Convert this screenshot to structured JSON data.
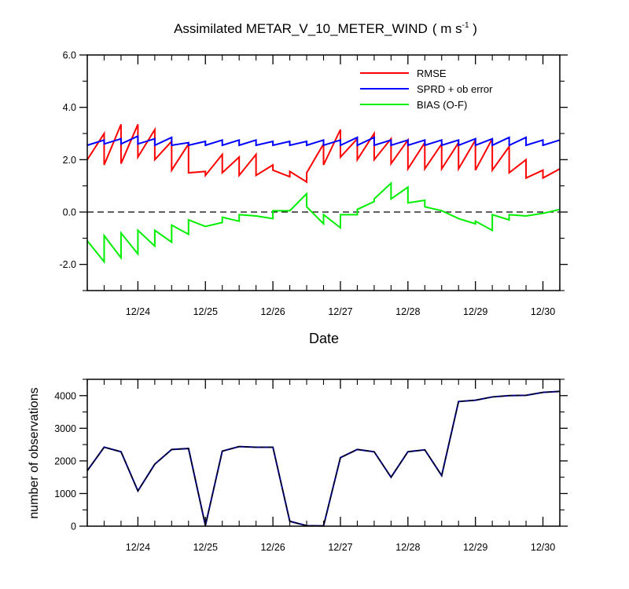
{
  "chart_data": [
    {
      "type": "line",
      "title": "Assimilated METAR_V_10_METER_WIND",
      "title_units": "( m s",
      "title_units_exp": "-1",
      "title_units_end": " )",
      "xlabel": "Date",
      "ylabel": "",
      "xlim": [
        0,
        7
      ],
      "ylim": [
        -3,
        6
      ],
      "x_tick_positions": [
        0.75,
        1.75,
        2.75,
        3.75,
        4.75,
        5.75,
        6.75
      ],
      "x_tick_labels": [
        "12/24",
        "12/25",
        "12/26",
        "12/27",
        "12/28",
        "12/29",
        "12/30"
      ],
      "y_ticks": [
        6,
        4,
        2,
        0,
        -2
      ],
      "y_tick_labels": [
        "6.0",
        "4.0",
        "2.0",
        "0.0",
        "-2.0"
      ],
      "zero_line": true,
      "legend_position": "top-right",
      "series": [
        {
          "name": "RMSE",
          "color": "#ff0000",
          "x": [
            0,
            0.25,
            0.25,
            0.5,
            0.5,
            0.75,
            0.75,
            1.0,
            1.0,
            1.25,
            1.25,
            1.5,
            1.5,
            1.75,
            1.75,
            2.0,
            2.0,
            2.25,
            2.25,
            2.5,
            2.5,
            2.75,
            2.75,
            3.0,
            3.0,
            3.25,
            3.25,
            3.5,
            3.5,
            3.75,
            3.75,
            4.0,
            4.0,
            4.25,
            4.25,
            4.5,
            4.5,
            4.75,
            4.75,
            5.0,
            5.0,
            5.25,
            5.25,
            5.5,
            5.5,
            5.75,
            5.75,
            6.0,
            6.0,
            6.25,
            6.25,
            6.5,
            6.5,
            6.75,
            6.75,
            7.0
          ],
          "y": [
            2.0,
            3.0,
            1.8,
            3.35,
            1.85,
            3.35,
            2.1,
            3.15,
            2.0,
            2.7,
            1.6,
            2.6,
            1.5,
            1.55,
            1.4,
            2.2,
            1.5,
            2.1,
            1.4,
            2.2,
            1.4,
            1.8,
            1.6,
            1.35,
            1.55,
            1.15,
            1.5,
            2.6,
            1.8,
            3.15,
            2.1,
            2.8,
            2.0,
            3.0,
            2.0,
            2.8,
            1.85,
            2.75,
            1.65,
            2.65,
            1.65,
            2.6,
            1.65,
            2.65,
            1.65,
            2.75,
            1.6,
            2.8,
            1.6,
            2.5,
            1.5,
            2.0,
            1.3,
            1.6,
            1.3,
            1.65
          ]
        },
        {
          "name": "SPRD + ob error",
          "color": "#0000ff",
          "x": [
            0,
            0.25,
            0.25,
            0.5,
            0.5,
            0.75,
            0.75,
            1.0,
            1.0,
            1.25,
            1.25,
            1.5,
            1.5,
            1.75,
            1.75,
            2.0,
            2.0,
            2.25,
            2.25,
            2.5,
            2.5,
            2.75,
            2.75,
            3.0,
            3.0,
            3.25,
            3.25,
            3.5,
            3.5,
            3.75,
            3.75,
            4.0,
            4.0,
            4.25,
            4.25,
            4.5,
            4.5,
            4.75,
            4.75,
            5.0,
            5.0,
            5.25,
            5.25,
            5.5,
            5.5,
            5.75,
            5.75,
            6.0,
            6.0,
            6.25,
            6.25,
            6.5,
            6.5,
            6.75,
            6.75,
            7.0
          ],
          "y": [
            2.55,
            2.75,
            2.6,
            2.8,
            2.6,
            2.9,
            2.6,
            2.8,
            2.55,
            2.85,
            2.55,
            2.65,
            2.55,
            2.7,
            2.55,
            2.75,
            2.55,
            2.75,
            2.55,
            2.75,
            2.55,
            2.7,
            2.55,
            2.7,
            2.55,
            2.7,
            2.55,
            2.75,
            2.55,
            2.75,
            2.55,
            2.85,
            2.55,
            2.85,
            2.55,
            2.75,
            2.55,
            2.75,
            2.55,
            2.75,
            2.55,
            2.75,
            2.55,
            2.75,
            2.55,
            2.8,
            2.55,
            2.8,
            2.55,
            2.85,
            2.55,
            2.85,
            2.55,
            2.75,
            2.55,
            2.75
          ]
        },
        {
          "name": "BIAS (O-F)",
          "color": "#00ee00",
          "x": [
            0,
            0.25,
            0.25,
            0.5,
            0.5,
            0.75,
            0.75,
            1.0,
            1.0,
            1.25,
            1.25,
            1.5,
            1.5,
            1.75,
            1.75,
            2.0,
            2.0,
            2.25,
            2.25,
            2.5,
            2.5,
            2.75,
            2.75,
            3.0,
            3.0,
            3.25,
            3.25,
            3.5,
            3.5,
            3.75,
            3.75,
            4.0,
            4.0,
            4.25,
            4.25,
            4.5,
            4.5,
            4.75,
            4.75,
            5.0,
            5.0,
            5.25,
            5.25,
            5.5,
            5.5,
            5.75,
            5.75,
            6.0,
            6.0,
            6.25,
            6.25,
            6.5,
            6.5,
            6.75,
            6.75,
            7.0
          ],
          "y": [
            -1.1,
            -1.9,
            -0.9,
            -1.75,
            -0.8,
            -1.6,
            -0.7,
            -1.3,
            -0.7,
            -1.15,
            -0.5,
            -0.85,
            -0.3,
            -0.55,
            -0.55,
            -0.4,
            -0.2,
            -0.35,
            -0.1,
            -0.15,
            -0.15,
            -0.25,
            0.05,
            0.05,
            0.05,
            0.7,
            0.2,
            -0.45,
            -0.1,
            -0.6,
            -0.1,
            -0.1,
            0.1,
            0.4,
            0.5,
            1.1,
            0.5,
            0.95,
            0.35,
            0.45,
            0.2,
            0.05,
            0.05,
            -0.25,
            -0.25,
            -0.45,
            -0.35,
            -0.7,
            -0.1,
            -0.3,
            -0.1,
            -0.15,
            -0.15,
            -0.05,
            -0.05,
            0.1
          ]
        }
      ]
    },
    {
      "type": "line",
      "title": "",
      "xlabel": "",
      "ylabel": "number of observations",
      "xlim": [
        0,
        7
      ],
      "ylim": [
        0,
        4500
      ],
      "x_tick_positions": [
        0.75,
        1.75,
        2.75,
        3.75,
        4.75,
        5.75,
        6.75
      ],
      "x_tick_labels": [
        "12/24",
        "12/25",
        "12/26",
        "12/27",
        "12/28",
        "12/29",
        "12/30"
      ],
      "y_ticks": [
        4000,
        3000,
        2000,
        1000,
        0
      ],
      "y_tick_labels": [
        "4000",
        "3000",
        "2000",
        "1000",
        "0"
      ],
      "series": [
        {
          "name": "observations",
          "color": "#000080",
          "dashed_overlay_color": "#000000",
          "x": [
            0,
            0.25,
            0.5,
            0.75,
            1.0,
            1.25,
            1.5,
            1.75,
            2.0,
            2.25,
            2.5,
            2.75,
            3.0,
            3.25,
            3.5,
            3.75,
            4.0,
            4.25,
            4.5,
            4.75,
            5.0,
            5.25,
            5.5,
            5.75,
            6.0,
            6.25,
            6.5,
            6.75,
            7.0
          ],
          "y": [
            1700,
            2420,
            2280,
            1080,
            1900,
            2350,
            2380,
            20,
            2300,
            2440,
            2420,
            2420,
            150,
            15,
            10,
            2100,
            2350,
            2280,
            1500,
            2280,
            2340,
            1550,
            3820,
            3860,
            3960,
            4000,
            4010,
            4100,
            4130
          ]
        }
      ]
    }
  ]
}
